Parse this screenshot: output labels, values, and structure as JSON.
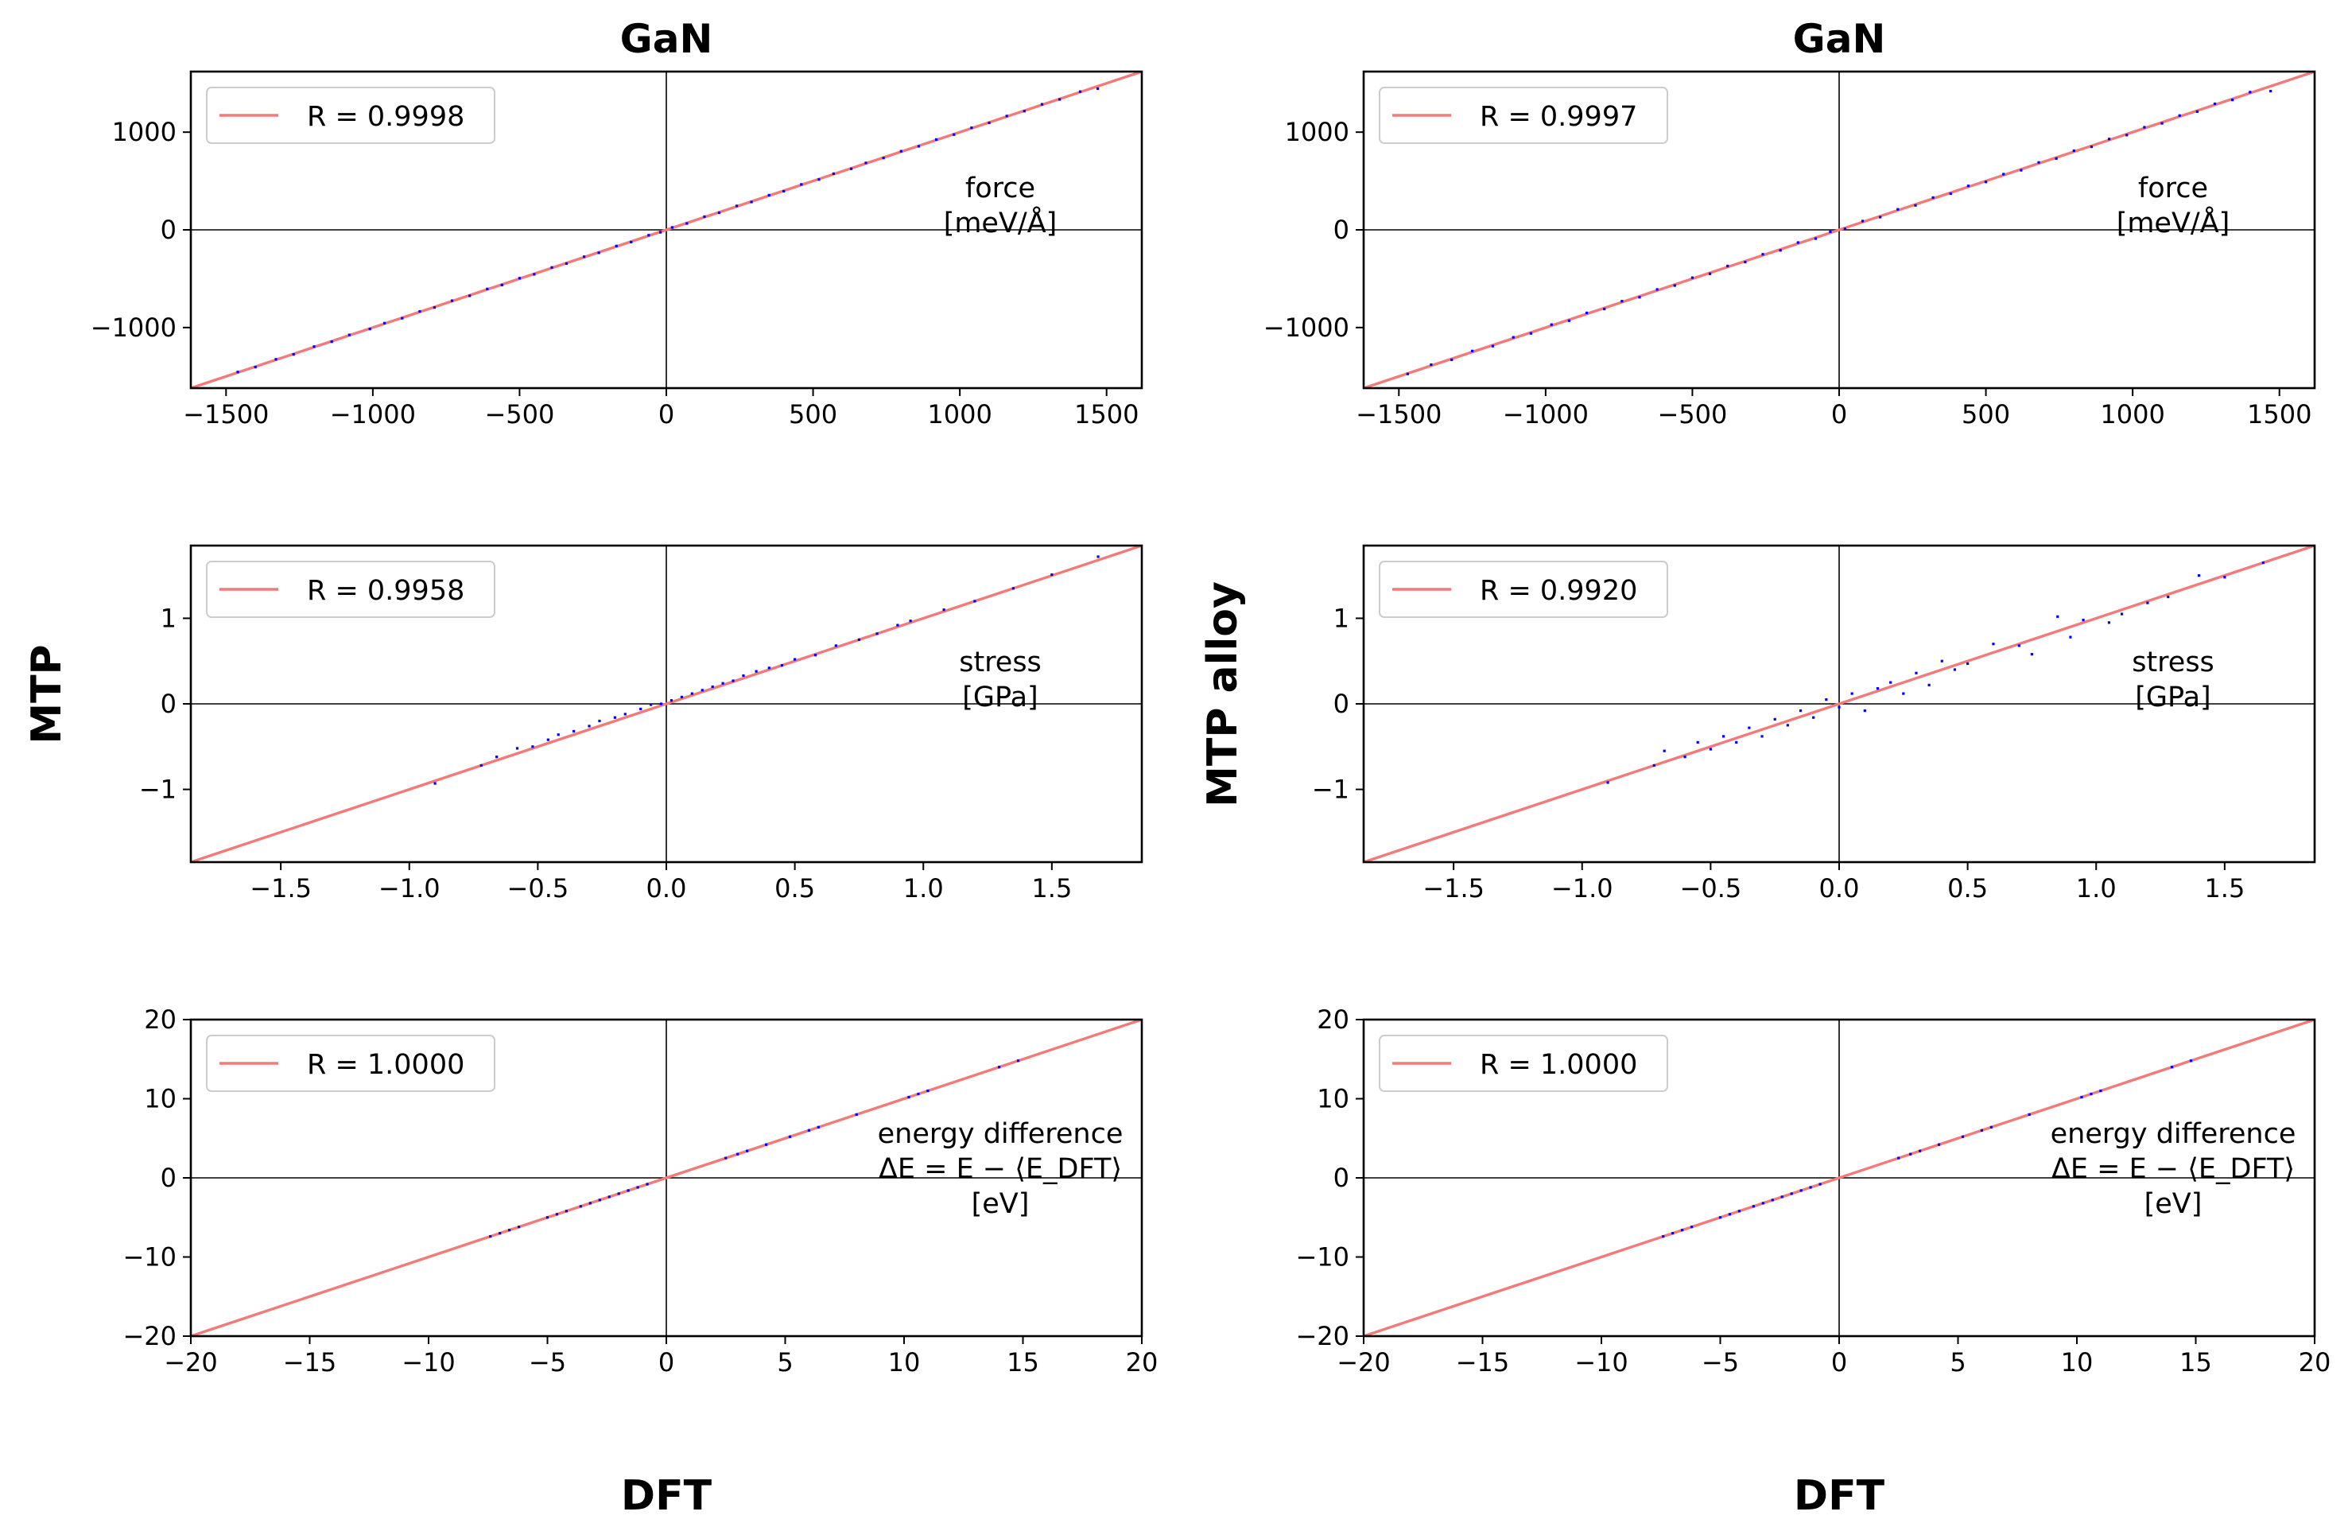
{
  "column_titles": [
    "GaN",
    "GaN"
  ],
  "row_labels": [
    "MTP",
    "MTP alloy"
  ],
  "column_xlabels": [
    "DFT",
    "DFT"
  ],
  "colors": {
    "fit_line": "#f47a7a",
    "points": "#0000ff",
    "axes": "#000000",
    "zero_lines": "#000000"
  },
  "chart_data": [
    {
      "type": "scatter",
      "panel": "col1-force",
      "xlim": [
        -1620,
        1620
      ],
      "ylim": [
        -1620,
        1620
      ],
      "xticks": [
        -1500,
        -1000,
        -500,
        0,
        500,
        1000,
        1500
      ],
      "xtick_labels": [
        "−1500",
        "−1000",
        "−500",
        "0",
        "500",
        "1000",
        "1500"
      ],
      "yticks": [
        -1000,
        0,
        1000
      ],
      "ytick_labels": [
        "−1000",
        "0",
        "1000"
      ],
      "legend": "R = 0.9998",
      "legend_position": "top-left",
      "annotation": [
        "force",
        "[meV/Å]"
      ],
      "fit_line": {
        "x": [
          -1620,
          1620
        ],
        "y": [
          -1620,
          1620
        ]
      },
      "points": {
        "x": [
          -1460,
          -1400,
          -1330,
          -1270,
          -1200,
          -1140,
          -1080,
          -1010,
          -960,
          -900,
          -840,
          -790,
          -730,
          -670,
          -610,
          -560,
          -500,
          -450,
          -390,
          -340,
          -280,
          -230,
          -170,
          -120,
          -60,
          -20,
          20,
          70,
          130,
          180,
          240,
          290,
          350,
          400,
          460,
          520,
          570,
          630,
          680,
          740,
          800,
          860,
          920,
          980,
          1040,
          1100,
          1160,
          1220,
          1280,
          1340,
          1410,
          1470
        ],
        "y": [
          -1455,
          -1405,
          -1325,
          -1275,
          -1195,
          -1145,
          -1075,
          -1015,
          -955,
          -905,
          -835,
          -795,
          -725,
          -675,
          -605,
          -565,
          -495,
          -455,
          -385,
          -345,
          -275,
          -235,
          -165,
          -125,
          -55,
          -25,
          25,
          65,
          135,
          175,
          245,
          285,
          355,
          395,
          465,
          515,
          575,
          625,
          685,
          735,
          805,
          855,
          925,
          975,
          1045,
          1095,
          1165,
          1215,
          1285,
          1335,
          1415,
          1445
        ]
      }
    },
    {
      "type": "scatter",
      "panel": "col1-stress",
      "xlim": [
        -1.85,
        1.85
      ],
      "ylim": [
        -1.85,
        1.85
      ],
      "xticks": [
        -1.5,
        -1.0,
        -0.5,
        0.0,
        0.5,
        1.0,
        1.5
      ],
      "xtick_labels": [
        "−1.5",
        "−1.0",
        "−0.5",
        "0.0",
        "0.5",
        "1.0",
        "1.5"
      ],
      "yticks": [
        -1,
        0,
        1
      ],
      "ytick_labels": [
        "−1",
        "0",
        "1"
      ],
      "legend": "R = 0.9958",
      "legend_position": "top-left",
      "annotation": [
        "stress",
        "[GPa]"
      ],
      "fit_line": {
        "x": [
          -1.85,
          1.85
        ],
        "y": [
          -1.85,
          1.85
        ]
      },
      "points": {
        "x": [
          -0.9,
          -0.72,
          -0.66,
          -0.58,
          -0.52,
          -0.46,
          -0.42,
          -0.36,
          -0.3,
          -0.26,
          -0.2,
          -0.16,
          -0.1,
          -0.06,
          -0.02,
          0.02,
          0.06,
          0.1,
          0.14,
          0.18,
          0.22,
          0.26,
          0.3,
          0.35,
          0.4,
          0.45,
          0.5,
          0.58,
          0.66,
          0.75,
          0.82,
          0.9,
          0.95,
          1.08,
          1.2,
          1.35,
          1.5,
          1.68
        ],
        "y": [
          -0.93,
          -0.72,
          -0.62,
          -0.52,
          -0.5,
          -0.42,
          -0.36,
          -0.32,
          -0.26,
          -0.2,
          -0.16,
          -0.12,
          -0.06,
          -0.01,
          0.0,
          0.04,
          0.08,
          0.12,
          0.16,
          0.2,
          0.24,
          0.27,
          0.33,
          0.38,
          0.42,
          0.45,
          0.52,
          0.57,
          0.68,
          0.75,
          0.82,
          0.92,
          0.97,
          1.1,
          1.2,
          1.35,
          1.51,
          1.72
        ]
      }
    },
    {
      "type": "scatter",
      "panel": "col1-energy",
      "xlim": [
        -20,
        20
      ],
      "ylim": [
        -20,
        20
      ],
      "xticks": [
        -20,
        -15,
        -10,
        -5,
        0,
        5,
        10,
        15,
        20
      ],
      "xtick_labels": [
        "−20",
        "−15",
        "−10",
        "−5",
        "0",
        "5",
        "10",
        "15",
        "20"
      ],
      "yticks": [
        -20,
        -10,
        0,
        10,
        20
      ],
      "ytick_labels": [
        "−20",
        "−10",
        "0",
        "10",
        "20"
      ],
      "legend": "R = 1.0000",
      "legend_position": "top-left",
      "annotation": [
        "energy difference",
        "ΔE = E − ⟨E_DFT⟩",
        "[eV]"
      ],
      "fit_line": {
        "x": [
          -20,
          20
        ],
        "y": [
          -20,
          20
        ]
      },
      "points": {
        "x": [
          -7.4,
          -7.0,
          -6.6,
          -6.2,
          -5.0,
          -4.6,
          -4.2,
          -3.6,
          -3.2,
          -2.8,
          -2.4,
          -2.0,
          -1.6,
          -1.2,
          -0.8,
          2.5,
          3.0,
          3.4,
          4.2,
          5.2,
          6.0,
          6.4,
          8.0,
          10.2,
          10.6,
          11.0,
          14.0,
          14.8
        ],
        "y": [
          -7.4,
          -7.0,
          -6.6,
          -6.2,
          -5.0,
          -4.6,
          -4.2,
          -3.6,
          -3.2,
          -2.8,
          -2.4,
          -2.0,
          -1.6,
          -1.2,
          -0.8,
          2.5,
          3.0,
          3.4,
          4.2,
          5.2,
          6.0,
          6.4,
          8.0,
          10.2,
          10.6,
          11.0,
          14.0,
          14.8
        ]
      }
    },
    {
      "type": "scatter",
      "panel": "col2-force",
      "xlim": [
        -1620,
        1620
      ],
      "ylim": [
        -1620,
        1620
      ],
      "xticks": [
        -1500,
        -1000,
        -500,
        0,
        500,
        1000,
        1500
      ],
      "xtick_labels": [
        "−1500",
        "−1000",
        "−500",
        "0",
        "500",
        "1000",
        "1500"
      ],
      "yticks": [
        -1000,
        0,
        1000
      ],
      "ytick_labels": [
        "−1000",
        "0",
        "1000"
      ],
      "legend": "R = 0.9997",
      "legend_position": "top-left",
      "annotation": [
        "force",
        "[meV/Å]"
      ],
      "fit_line": {
        "x": [
          -1620,
          1620
        ],
        "y": [
          -1620,
          1620
        ]
      },
      "points": {
        "x": [
          -1470,
          -1390,
          -1320,
          -1250,
          -1180,
          -1110,
          -1050,
          -980,
          -920,
          -860,
          -800,
          -740,
          -680,
          -620,
          -560,
          -500,
          -440,
          -380,
          -320,
          -260,
          -200,
          -140,
          -80,
          -30,
          20,
          80,
          140,
          200,
          260,
          320,
          380,
          440,
          500,
          560,
          620,
          680,
          740,
          800,
          860,
          920,
          980,
          1040,
          1100,
          1160,
          1220,
          1280,
          1340,
          1400,
          1470
        ],
        "y": [
          -1475,
          -1380,
          -1330,
          -1240,
          -1190,
          -1100,
          -1060,
          -970,
          -930,
          -850,
          -810,
          -730,
          -690,
          -610,
          -570,
          -490,
          -450,
          -370,
          -330,
          -250,
          -210,
          -130,
          -90,
          -20,
          10,
          90,
          130,
          210,
          250,
          330,
          370,
          450,
          490,
          570,
          610,
          690,
          730,
          810,
          850,
          930,
          970,
          1050,
          1090,
          1170,
          1210,
          1290,
          1330,
          1410,
          1420
        ]
      }
    },
    {
      "type": "scatter",
      "panel": "col2-stress",
      "xlim": [
        -1.85,
        1.85
      ],
      "ylim": [
        -1.85,
        1.85
      ],
      "xticks": [
        -1.5,
        -1.0,
        -0.5,
        0.0,
        0.5,
        1.0,
        1.5
      ],
      "xtick_labels": [
        "−1.5",
        "−1.0",
        "−0.5",
        "0.0",
        "0.5",
        "1.0",
        "1.5"
      ],
      "yticks": [
        -1,
        0,
        1
      ],
      "ytick_labels": [
        "−1",
        "0",
        "1"
      ],
      "legend": "R = 0.9920",
      "legend_position": "top-left",
      "annotation": [
        "stress",
        "[GPa]"
      ],
      "fit_line": {
        "x": [
          -1.85,
          1.85
        ],
        "y": [
          -1.85,
          1.85
        ]
      },
      "points": {
        "x": [
          -0.9,
          -0.72,
          -0.68,
          -0.6,
          -0.55,
          -0.5,
          -0.45,
          -0.4,
          -0.35,
          -0.3,
          -0.25,
          -0.2,
          -0.15,
          -0.1,
          -0.05,
          0.0,
          0.05,
          0.1,
          0.15,
          0.2,
          0.25,
          0.3,
          0.35,
          0.4,
          0.45,
          0.5,
          0.6,
          0.7,
          0.75,
          0.85,
          0.9,
          0.95,
          1.05,
          1.1,
          1.2,
          1.28,
          1.4,
          1.5,
          1.65
        ],
        "y": [
          -0.92,
          -0.72,
          -0.55,
          -0.62,
          -0.45,
          -0.53,
          -0.38,
          -0.45,
          -0.28,
          -0.38,
          -0.18,
          -0.25,
          -0.08,
          -0.16,
          0.05,
          -0.04,
          0.12,
          -0.08,
          0.18,
          0.25,
          0.12,
          0.36,
          0.22,
          0.5,
          0.4,
          0.47,
          0.7,
          0.68,
          0.58,
          1.02,
          0.78,
          0.98,
          0.95,
          1.05,
          1.18,
          1.25,
          1.5,
          1.48,
          1.65
        ]
      }
    },
    {
      "type": "scatter",
      "panel": "col2-energy",
      "xlim": [
        -20,
        20
      ],
      "ylim": [
        -20,
        20
      ],
      "xticks": [
        -20,
        -15,
        -10,
        -5,
        0,
        5,
        10,
        15,
        20
      ],
      "xtick_labels": [
        "−20",
        "−15",
        "−10",
        "−5",
        "0",
        "5",
        "10",
        "15",
        "20"
      ],
      "yticks": [
        -20,
        -10,
        0,
        10,
        20
      ],
      "ytick_labels": [
        "−20",
        "−10",
        "0",
        "10",
        "20"
      ],
      "legend": "R = 1.0000",
      "legend_position": "top-left",
      "annotation": [
        "energy difference",
        "ΔE = E − ⟨E_DFT⟩",
        "[eV]"
      ],
      "fit_line": {
        "x": [
          -20,
          20
        ],
        "y": [
          -20,
          20
        ]
      },
      "points": {
        "x": [
          -7.4,
          -7.0,
          -6.6,
          -6.2,
          -5.0,
          -4.6,
          -4.2,
          -3.6,
          -3.2,
          -2.8,
          -2.4,
          -2.0,
          -1.6,
          -1.2,
          -0.8,
          2.5,
          3.0,
          3.4,
          4.2,
          5.2,
          6.0,
          6.4,
          8.0,
          10.2,
          10.6,
          11.0,
          14.0,
          14.8
        ],
        "y": [
          -7.4,
          -7.0,
          -6.6,
          -6.2,
          -5.0,
          -4.6,
          -4.2,
          -3.6,
          -3.2,
          -2.8,
          -2.4,
          -2.0,
          -1.6,
          -1.2,
          -0.8,
          2.5,
          3.0,
          3.4,
          4.2,
          5.2,
          6.0,
          6.4,
          8.0,
          10.2,
          10.6,
          11.0,
          14.0,
          14.8
        ]
      }
    }
  ]
}
